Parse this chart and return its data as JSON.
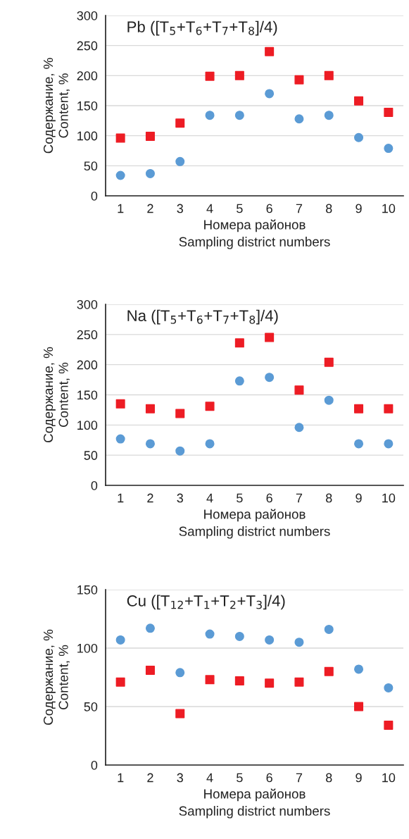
{
  "chart_data": [
    {
      "type": "scatter",
      "title": "Pb ([T$_{5}$+T$_{6}$+T$_{7}$+T$_{8}$]/4)",
      "xlabel": "Номера районов\nSampling district numbers",
      "ylabel": "Содержание, %\nContent, %",
      "categories": [
        "1",
        "2",
        "3",
        "4",
        "5",
        "6",
        "7",
        "8",
        "9",
        "10"
      ],
      "ylim": [
        0,
        300
      ],
      "yticks": [
        0,
        50,
        100,
        150,
        200,
        250,
        300
      ],
      "grid": "y",
      "legend": false,
      "series": [
        {
          "color": "#5b9bd5",
          "marker": "circle",
          "values": [
            34,
            37,
            57,
            134,
            134,
            170,
            128,
            134,
            97,
            79
          ]
        },
        {
          "color": "#ed1c24",
          "marker": "square",
          "values": [
            96,
            99,
            121,
            199,
            200,
            240,
            193,
            200,
            158,
            139
          ]
        }
      ]
    },
    {
      "type": "scatter",
      "title": "Na ([T$_{5}$+T$_{6}$+T$_{7}$+T$_{8}$]/4)",
      "xlabel": "Номера районов\nSampling district numbers",
      "ylabel": "Содержание, %\nContent, %",
      "categories": [
        "1",
        "2",
        "3",
        "4",
        "5",
        "6",
        "7",
        "8",
        "9",
        "10"
      ],
      "ylim": [
        0,
        300
      ],
      "yticks": [
        0,
        50,
        100,
        150,
        200,
        250,
        300
      ],
      "grid": "y",
      "legend": false,
      "series": [
        {
          "color": "#5b9bd5",
          "marker": "circle",
          "values": [
            77,
            69,
            57,
            69,
            173,
            179,
            96,
            141,
            69,
            69
          ]
        },
        {
          "color": "#ed1c24",
          "marker": "square",
          "values": [
            135,
            127,
            119,
            131,
            236,
            245,
            158,
            204,
            127,
            127
          ]
        }
      ]
    },
    {
      "type": "scatter",
      "title": "Cu ([T$_{12}$+T$_{1}$+T$_{2}$+T$_{3}$]/4)",
      "xlabel": "Номера районов\nSampling district numbers",
      "ylabel": "Содержание, %\nContent, %",
      "categories": [
        "1",
        "2",
        "3",
        "4",
        "5",
        "6",
        "7",
        "8",
        "9",
        "10"
      ],
      "ylim": [
        0,
        150
      ],
      "yticks": [
        0,
        50,
        100,
        150
      ],
      "grid": "y",
      "legend": false,
      "series": [
        {
          "color": "#5b9bd5",
          "marker": "circle",
          "values": [
            107,
            117,
            79,
            112,
            110,
            107,
            105,
            116,
            82,
            66
          ]
        },
        {
          "color": "#ed1c24",
          "marker": "square",
          "values": [
            71,
            81,
            44,
            73,
            72,
            70,
            71,
            80,
            50,
            34
          ]
        }
      ]
    }
  ]
}
